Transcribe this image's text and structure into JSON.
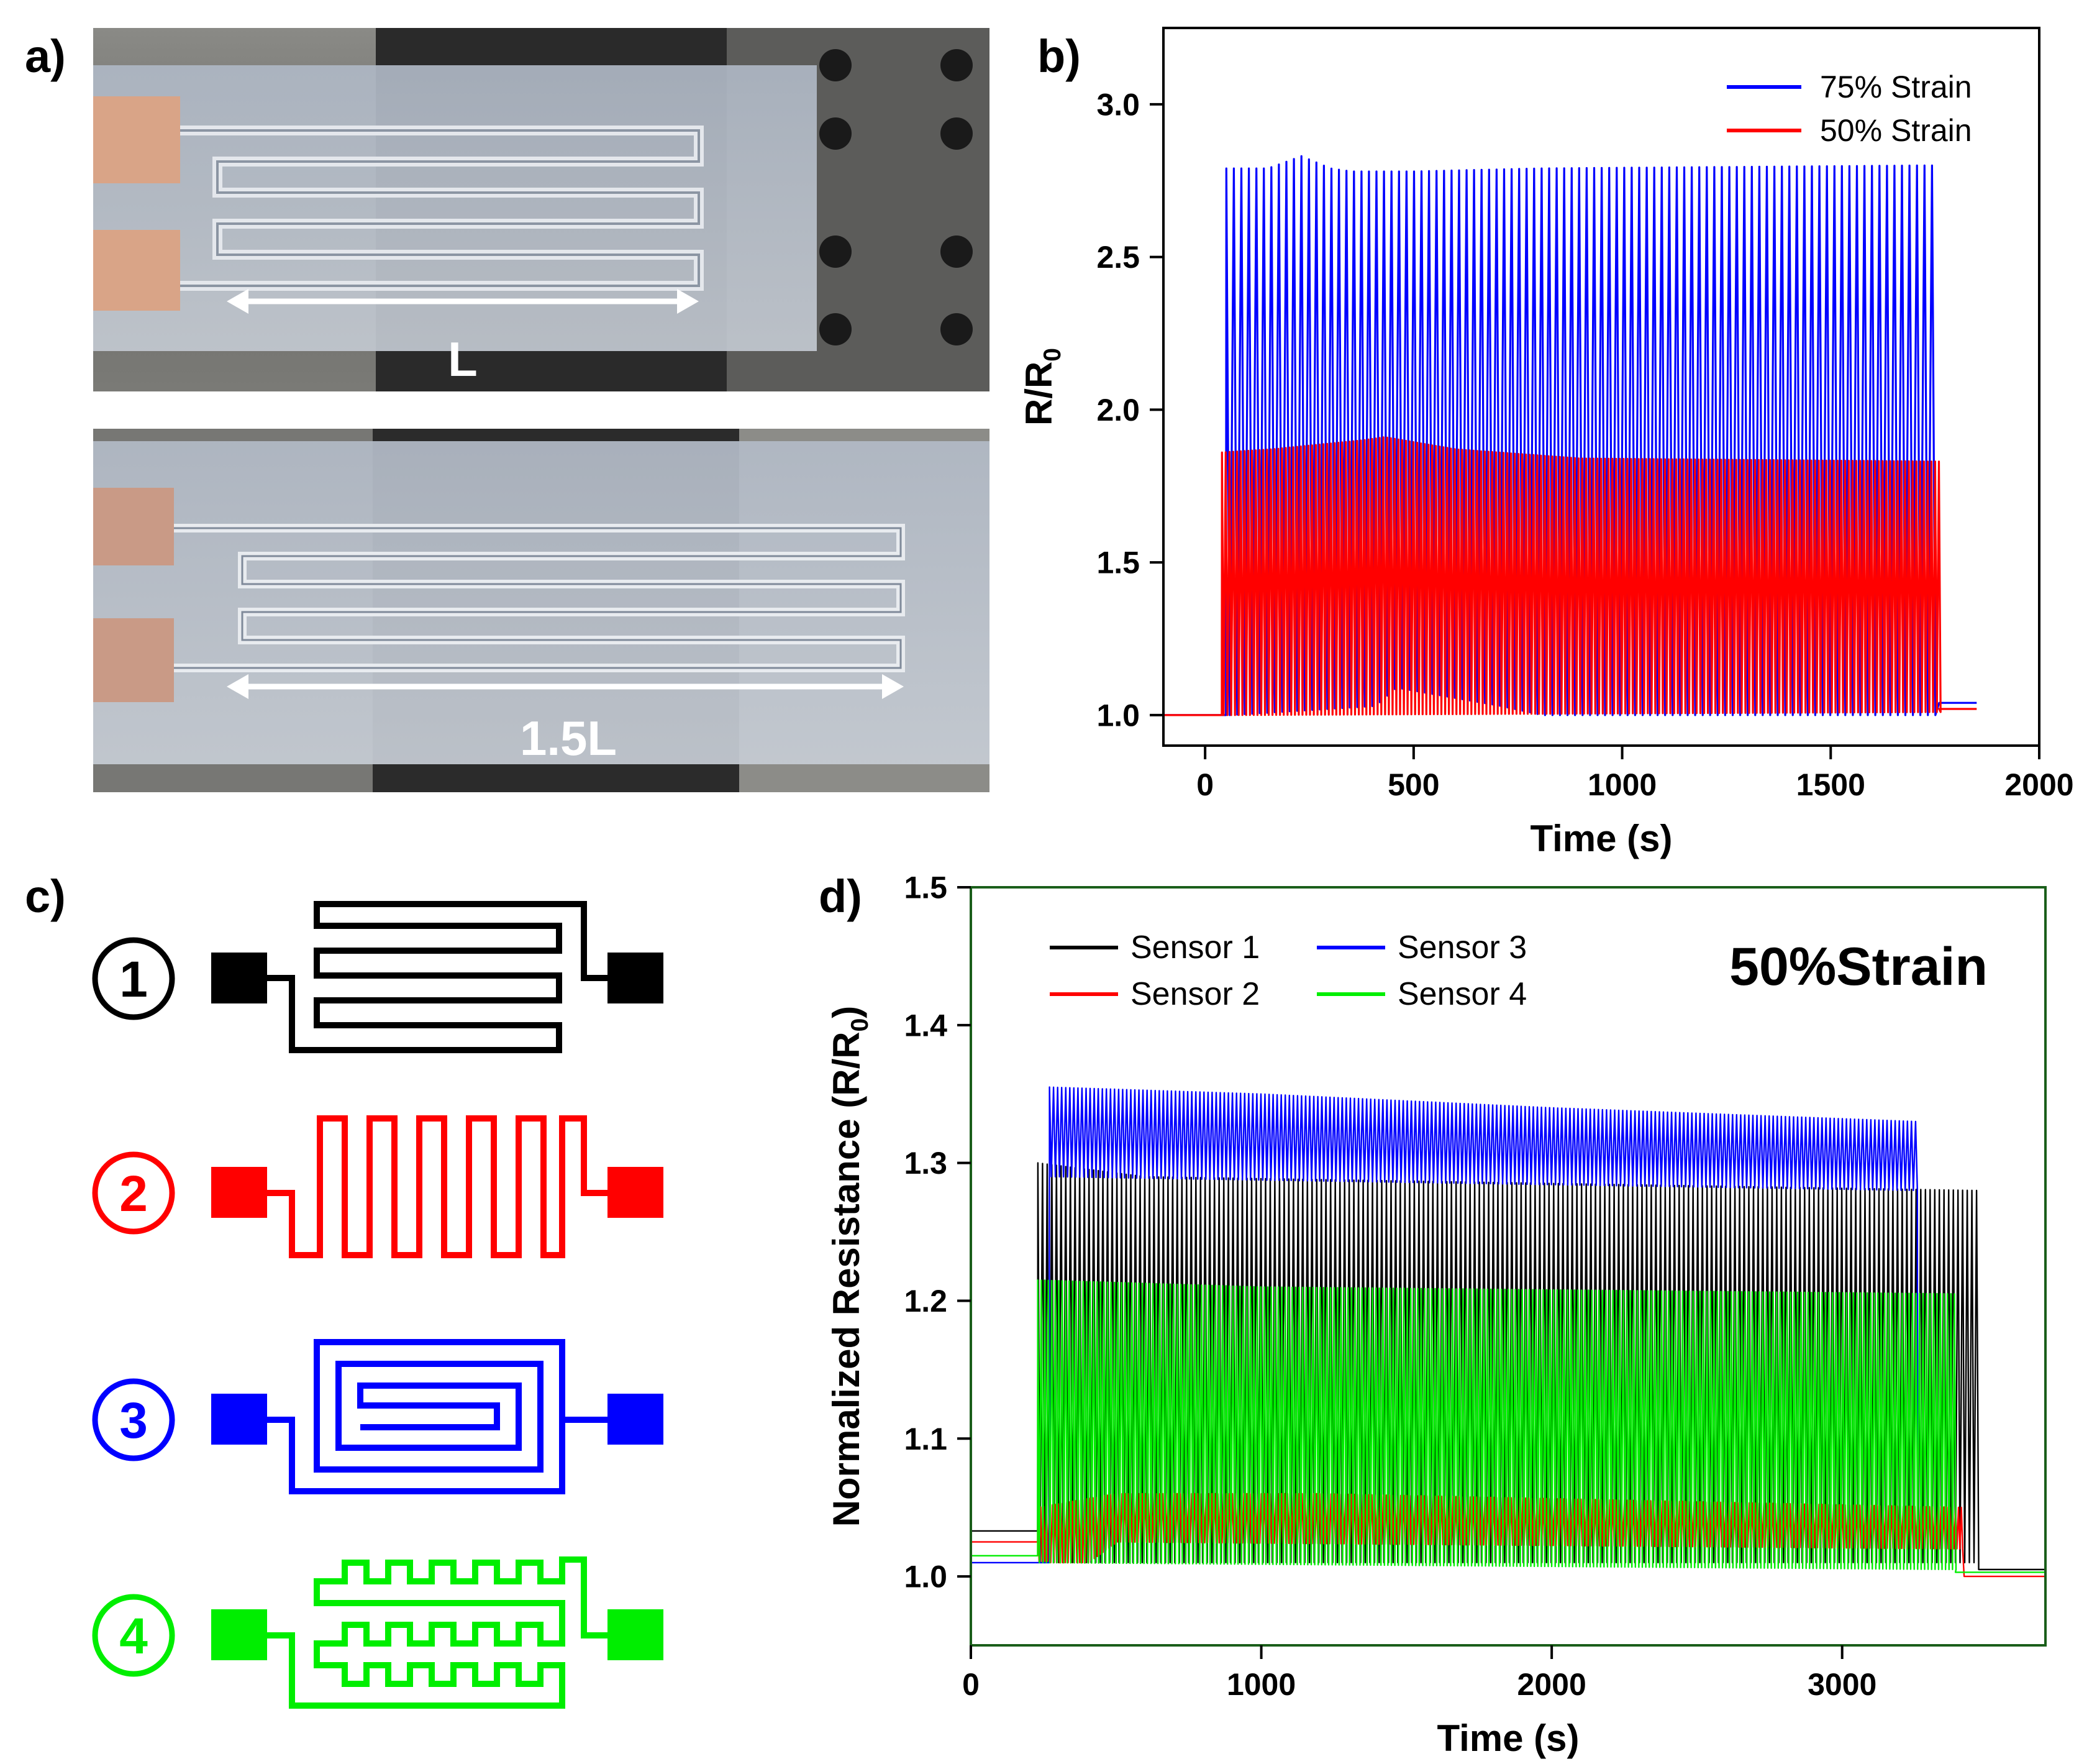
{
  "panels": {
    "a": "a)",
    "b": "b)",
    "c": "c)",
    "d": "d)"
  },
  "photos": {
    "top_label": "L",
    "bottom_label": "1.5L"
  },
  "schematic": {
    "sensors": [
      {
        "number": "1",
        "color": "#000000",
        "pattern": "serpentine"
      },
      {
        "number": "2",
        "color": "#ff0000",
        "pattern": "meander"
      },
      {
        "number": "3",
        "color": "#0000ff",
        "pattern": "spiral"
      },
      {
        "number": "4",
        "color": "#00ee00",
        "pattern": "square-wave"
      }
    ]
  },
  "chart_data": [
    {
      "id": "b",
      "type": "line",
      "title": "",
      "xlabel": "Time (s)",
      "ylabel": "R/R",
      "ylabel_sub": "0",
      "xlim": [
        -100,
        2000
      ],
      "ylim": [
        0.9,
        3.25
      ],
      "xticks": [
        0,
        500,
        1000,
        1500,
        2000
      ],
      "yticks": [
        1.0,
        1.5,
        2.0,
        2.5,
        3.0
      ],
      "xtick_labels": [
        "0",
        "500",
        "1000",
        "1500",
        "2000"
      ],
      "ytick_labels": [
        "1.0",
        "1.5",
        "2.0",
        "2.5",
        "3.0"
      ],
      "legend_position": "top-right",
      "series": [
        {
          "name": "75% Strain",
          "color": "#0000ff",
          "baseline": 1.0,
          "start": 50,
          "end": 1760,
          "end_value": 1.04,
          "tail_end": 1850,
          "period": 18,
          "peak_profile": [
            [
              50,
              2.79
            ],
            [
              150,
              2.79
            ],
            [
              230,
              2.83
            ],
            [
              300,
              2.79
            ],
            [
              350,
              2.78
            ],
            [
              500,
              2.78
            ],
            [
              800,
              2.79
            ],
            [
              1760,
              2.8
            ]
          ],
          "trough_profile": [
            [
              50,
              1.0
            ],
            [
              400,
              1.03
            ],
            [
              450,
              1.09
            ],
            [
              700,
              1.03
            ],
            [
              800,
              1.0
            ],
            [
              1760,
              1.0
            ]
          ]
        },
        {
          "name": "50% Strain",
          "color": "#ff0000",
          "baseline": 1.0,
          "start": 40,
          "end": 1760,
          "end_value": 1.02,
          "tail_end": 1850,
          "period": 9,
          "peak_profile": [
            [
              40,
              1.86
            ],
            [
              160,
              1.87
            ],
            [
              380,
              1.9
            ],
            [
              430,
              1.91
            ],
            [
              600,
              1.87
            ],
            [
              900,
              1.84
            ],
            [
              1760,
              1.83
            ]
          ],
          "trough_profile": [
            [
              40,
              1.0
            ],
            [
              1760,
              1.01
            ]
          ]
        }
      ]
    },
    {
      "id": "d",
      "type": "line",
      "title": "50%Strain",
      "xlabel": "Time (s)",
      "ylabel": "Normalized Resistance (R/R",
      "ylabel_sub": "0",
      "ylabel_end": ")",
      "xlim": [
        0,
        3700
      ],
      "ylim": [
        0.95,
        1.5
      ],
      "xticks": [
        0,
        1000,
        2000,
        3000
      ],
      "yticks": [
        1.0,
        1.1,
        1.2,
        1.3,
        1.4,
        1.5
      ],
      "xtick_labels": [
        "0",
        "1000",
        "2000",
        "3000"
      ],
      "ytick_labels": [
        "1.0",
        "1.1",
        "1.2",
        "1.3",
        "1.4",
        "1.5"
      ],
      "legend_position": "top-left",
      "series": [
        {
          "name": "Sensor 1",
          "color": "#000000",
          "baseline": 1.033,
          "start": 230,
          "end": 3470,
          "end_value": 1.005,
          "tail_end": 3700,
          "period": 16,
          "peak_profile": [
            [
              230,
              1.3
            ],
            [
              600,
              1.29
            ],
            [
              3470,
              1.28
            ]
          ],
          "trough_profile": [
            [
              230,
              1.01
            ],
            [
              3470,
              1.01
            ]
          ]
        },
        {
          "name": "Sensor 2",
          "color": "#ff0000",
          "baseline": 1.025,
          "start": 230,
          "end": 3420,
          "end_value": 1.0,
          "tail_end": 3700,
          "period": 10,
          "peak_profile": [
            [
              230,
              1.05
            ],
            [
              500,
              1.06
            ],
            [
              1200,
              1.06
            ],
            [
              3420,
              1.05
            ]
          ],
          "trough_profile": [
            [
              230,
              1.01
            ],
            [
              400,
              1.01
            ],
            [
              500,
              1.025
            ],
            [
              3420,
              1.02
            ]
          ]
        },
        {
          "name": "Sensor 3",
          "color": "#0000ff",
          "baseline": 1.01,
          "start": 270,
          "end": 3260,
          "end_value": 1.01,
          "tail_end": 3260,
          "period": 14,
          "peak_profile": [
            [
              270,
              1.355
            ],
            [
              1000,
              1.35
            ],
            [
              2000,
              1.34
            ],
            [
              3260,
              1.33
            ]
          ],
          "trough_profile": [
            [
              270,
              1.29
            ],
            [
              3260,
              1.28
            ]
          ]
        },
        {
          "name": "Sensor 4",
          "color": "#00ee00",
          "baseline": 1.015,
          "start": 230,
          "end": 3390,
          "end_value": 1.003,
          "tail_end": 3700,
          "period": 12,
          "peak_profile": [
            [
              230,
              1.215
            ],
            [
              1000,
              1.21
            ],
            [
              3390,
              1.205
            ]
          ],
          "trough_profile": [
            [
              230,
              1.01
            ],
            [
              3390,
              1.005
            ]
          ]
        }
      ]
    }
  ]
}
